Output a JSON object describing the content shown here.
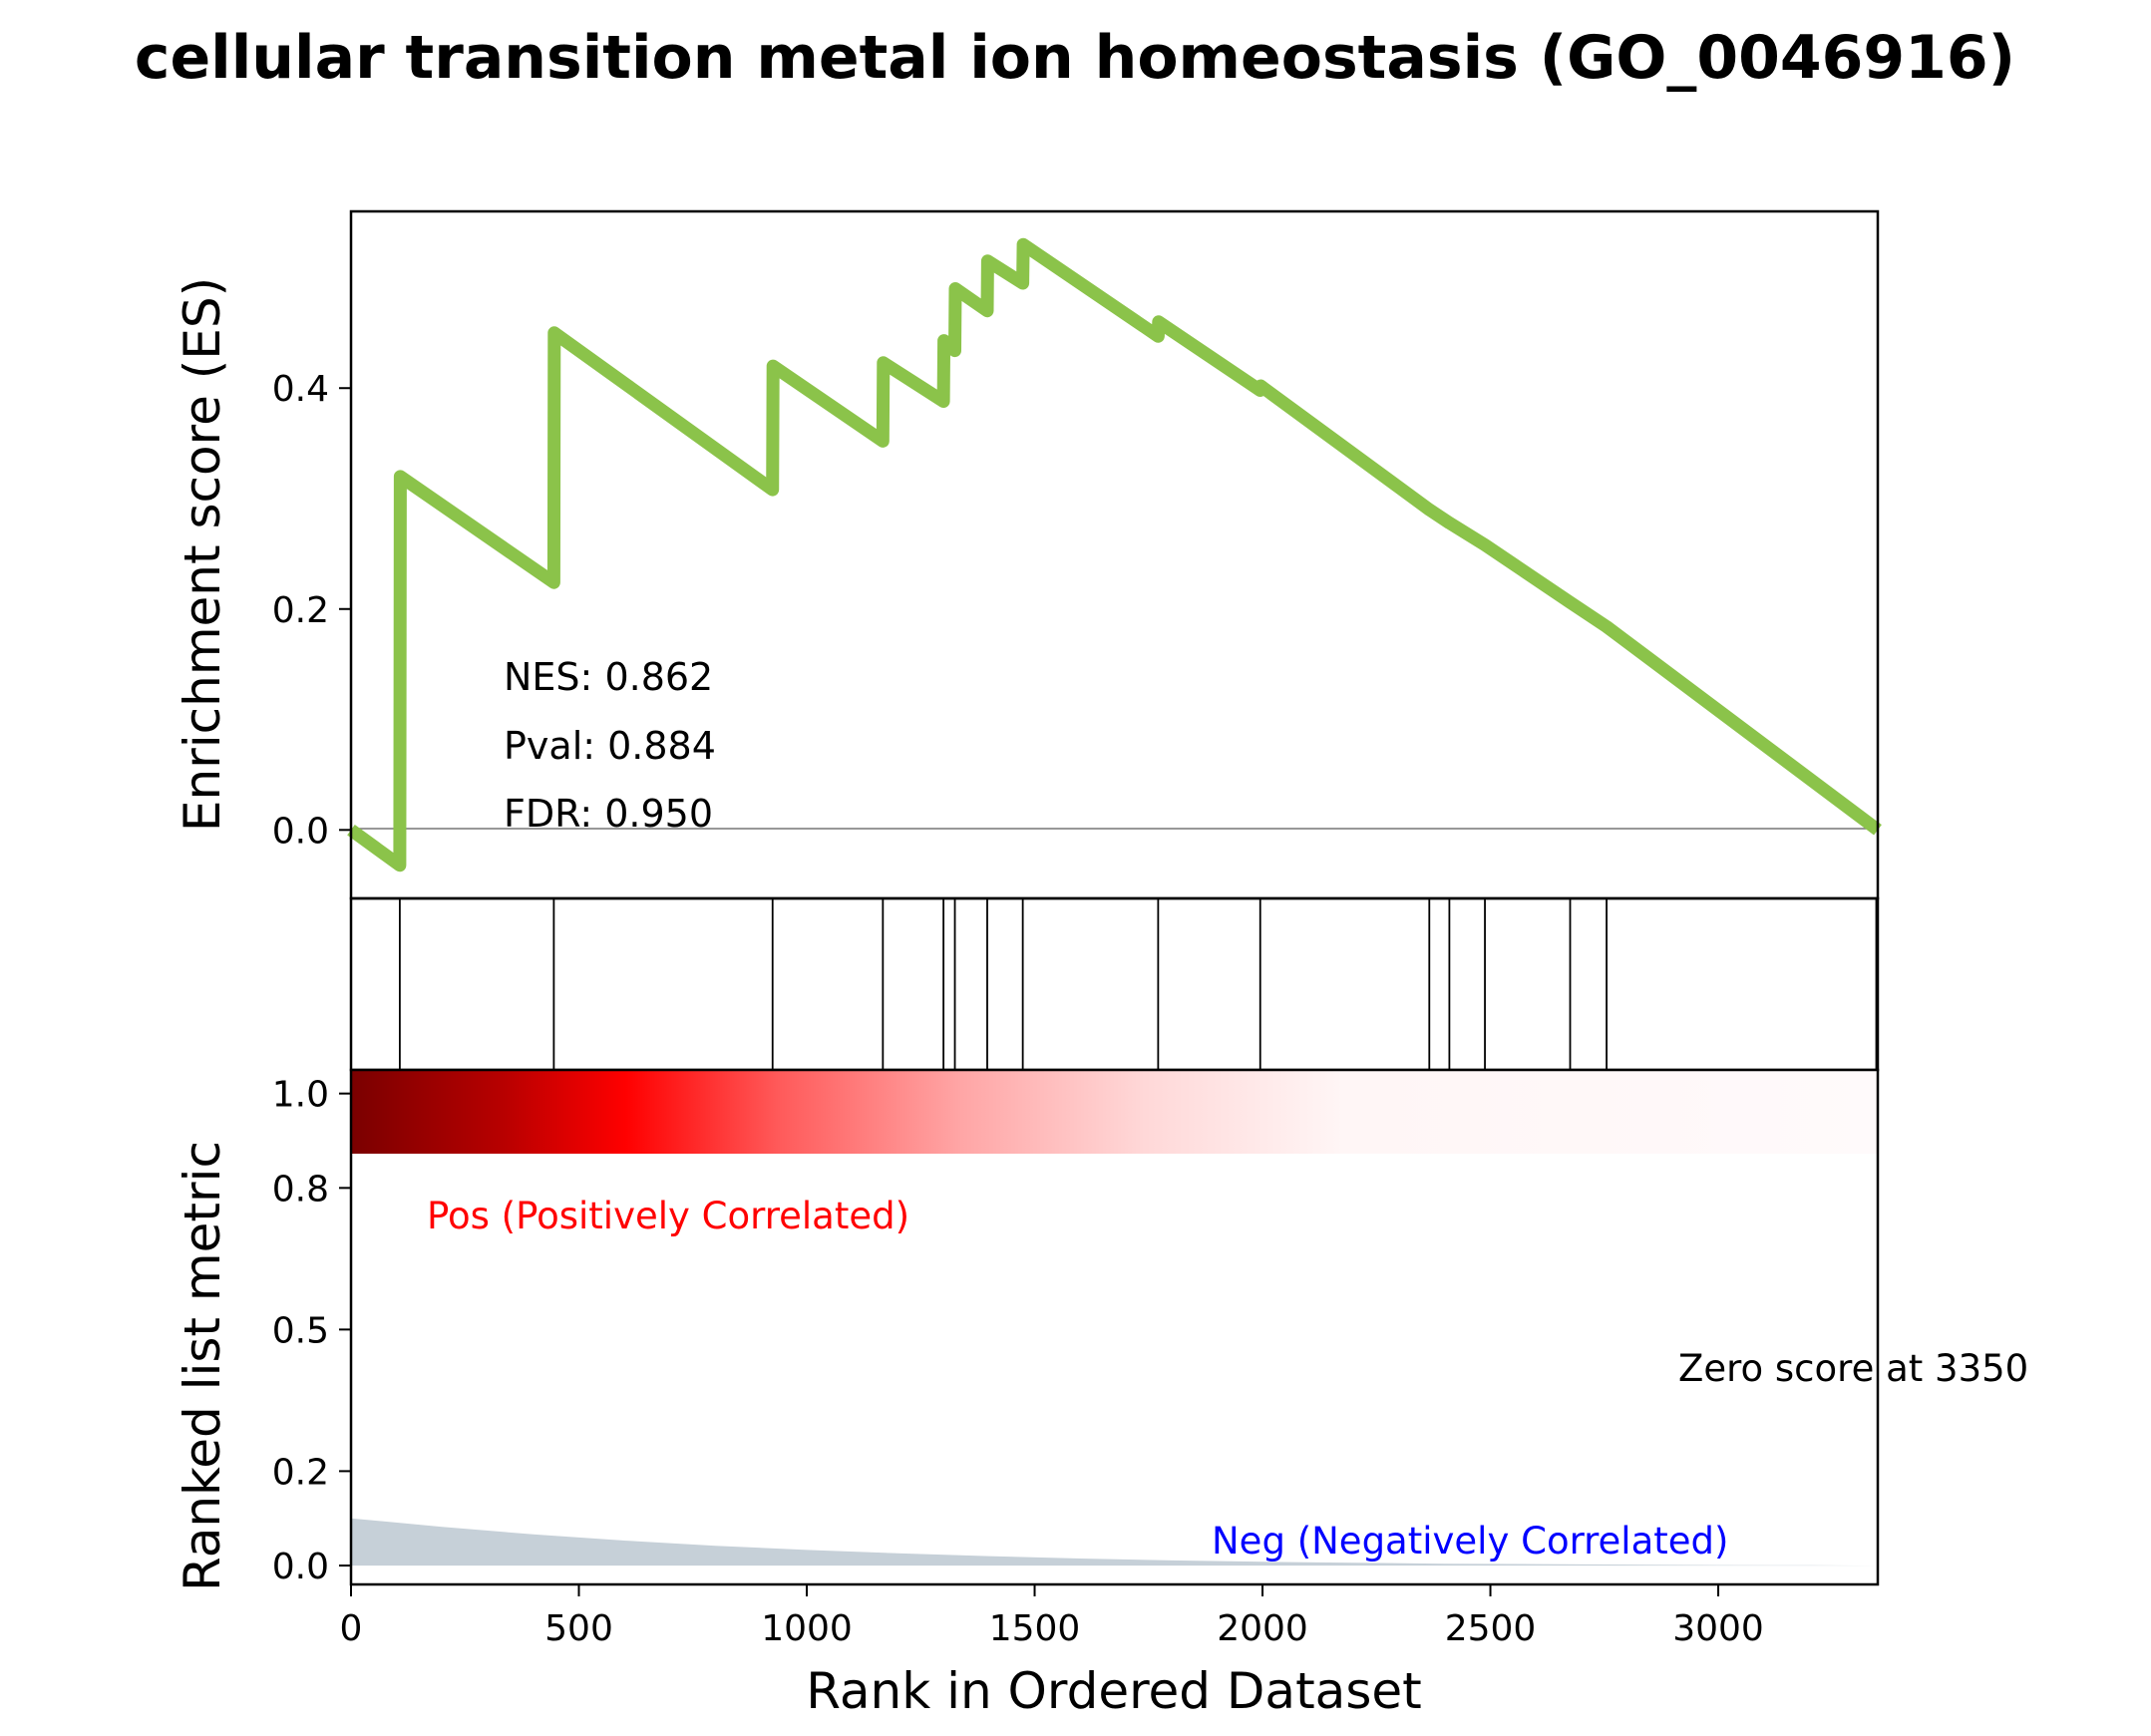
{
  "chart_data": {
    "type": "line",
    "title": "cellular transition metal ion homeostasis (GO_0046916)",
    "es_panel": {
      "ylabel": "Enrichment score (ES)",
      "yticks": [
        "0.0",
        "0.2",
        "0.4"
      ],
      "ytick_values": [
        0.0,
        0.2,
        0.4
      ],
      "ylim": [
        -0.062,
        0.56
      ],
      "line_color": "#8bc34a",
      "series": [
        {
          "x": [
            0,
            107,
            108,
            445,
            446,
            925,
            926,
            1167,
            1168,
            1300,
            1301,
            1325,
            1326,
            1396,
            1397,
            1474,
            1475,
            1771,
            1772,
            1995,
            1996,
            2366,
            2410,
            2488,
            2675,
            2755,
            3350
          ],
          "y": [
            0.0,
            -0.032,
            0.32,
            0.224,
            0.45,
            0.308,
            0.42,
            0.352,
            0.423,
            0.388,
            0.443,
            0.434,
            0.49,
            0.47,
            0.515,
            0.495,
            0.53,
            0.447,
            0.46,
            0.398,
            0.402,
            0.29,
            0.278,
            0.258,
            0.206,
            0.184,
            0.0
          ]
        }
      ],
      "annotations": [
        "NES: 0.862",
        "Pval: 0.884",
        "FDR: 0.950"
      ]
    },
    "hits": [
      107,
      445,
      925,
      1167,
      1300,
      1325,
      1396,
      1474,
      1771,
      1995,
      2366,
      2410,
      2488,
      2675,
      2755,
      3350
    ],
    "rank_panel": {
      "ylabel": "Ranked list metric",
      "yticks": [
        "0.0",
        "0.2",
        "0.5",
        "0.8",
        "1.0"
      ],
      "ytick_values": [
        0.0,
        0.2,
        0.5,
        0.8,
        1.0
      ],
      "ylim": [
        -0.04,
        1.05
      ],
      "fill_color": "#c6d0d8",
      "metric_x": [
        0,
        200,
        400,
        600,
        800,
        1000,
        1200,
        1400,
        1600,
        1800,
        2000,
        2200,
        2400,
        2600,
        2800,
        3000,
        3200,
        3350
      ],
      "metric_y": [
        0.1,
        0.082,
        0.066,
        0.053,
        0.042,
        0.033,
        0.026,
        0.02,
        0.015,
        0.011,
        0.008,
        0.006,
        0.004,
        0.003,
        0.002,
        0.001,
        0.0005,
        0.0
      ],
      "pos_label": "Pos (Positively Correlated)",
      "neg_label": "Neg (Negatively Correlated)",
      "zero_label": "Zero score at 3350",
      "pos_color": "#ff0000",
      "neg_color": "#0000ff",
      "xlabel": "Rank in Ordered Dataset",
      "xticks": [
        "0",
        "500",
        "1000",
        "1500",
        "2000",
        "2500",
        "3000"
      ],
      "xtick_values": [
        0,
        500,
        1000,
        1500,
        2000,
        2500,
        3000
      ],
      "xlim": [
        0,
        3350
      ]
    },
    "heat_colors": [
      "#7a0000",
      "#b80000",
      "#ff0000",
      "#ff5a5a",
      "#ffa6a6",
      "#ffd8d8",
      "#fff6f6",
      "#fffafb"
    ]
  }
}
